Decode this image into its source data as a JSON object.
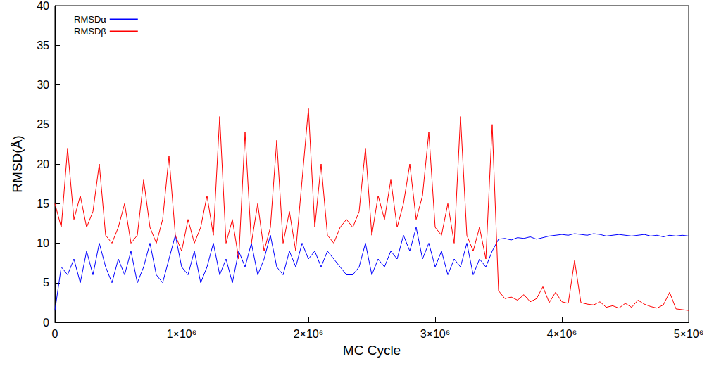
{
  "chart_data": {
    "type": "line",
    "x_label": "MC Cycle",
    "y_label": "RMSD(Å)",
    "x": [
      0,
      50000,
      100000,
      150000,
      200000,
      250000,
      300000,
      350000,
      400000,
      450000,
      500000,
      550000,
      600000,
      650000,
      700000,
      750000,
      800000,
      850000,
      900000,
      950000,
      1000000,
      1050000,
      1100000,
      1150000,
      1200000,
      1250000,
      1300000,
      1350000,
      1400000,
      1450000,
      1500000,
      1550000,
      1600000,
      1650000,
      1700000,
      1750000,
      1800000,
      1850000,
      1900000,
      1950000,
      2000000,
      2050000,
      2100000,
      2150000,
      2200000,
      2250000,
      2300000,
      2350000,
      2400000,
      2450000,
      2500000,
      2550000,
      2600000,
      2650000,
      2700000,
      2750000,
      2800000,
      2850000,
      2900000,
      2950000,
      3000000,
      3050000,
      3100000,
      3150000,
      3200000,
      3250000,
      3300000,
      3350000,
      3400000,
      3450000,
      3500000,
      3550000,
      3600000,
      3650000,
      3700000,
      3750000,
      3800000,
      3850000,
      3900000,
      3950000,
      4000000,
      4050000,
      4100000,
      4150000,
      4200000,
      4250000,
      4300000,
      4350000,
      4400000,
      4450000,
      4500000,
      4550000,
      4600000,
      4650000,
      4700000,
      4750000,
      4800000,
      4850000,
      4900000,
      4950000,
      5000000
    ],
    "series": [
      {
        "name": "RMSDα",
        "color": "#0000ff",
        "values": [
          1.5,
          7,
          6,
          8,
          5,
          9,
          6,
          10,
          7,
          5,
          8,
          6,
          9,
          5,
          7,
          10,
          6,
          5,
          8,
          11,
          7,
          6,
          9,
          5,
          7,
          10,
          6,
          8,
          5,
          9,
          7,
          10,
          6,
          8,
          11,
          7,
          6,
          9,
          7,
          10,
          8,
          9,
          7,
          9,
          8,
          7,
          6,
          6,
          7,
          10,
          6,
          8,
          7,
          9,
          8,
          11,
          9,
          12,
          8,
          10,
          7,
          9,
          6,
          8,
          7,
          10,
          6,
          8,
          7,
          9,
          10.5,
          10.6,
          10.4,
          10.7,
          10.6,
          10.8,
          10.5,
          10.7,
          10.9,
          11,
          11.1,
          11,
          11.2,
          11.1,
          11,
          11.2,
          11.1,
          10.9,
          11,
          11.1,
          11,
          10.9,
          11,
          11.1,
          10.9,
          11,
          10.8,
          11,
          10.9,
          11,
          10.9
        ]
      },
      {
        "name": "RMSDβ",
        "color": "#ff0000",
        "values": [
          15,
          12,
          22,
          13,
          16,
          12,
          14,
          20,
          11,
          10,
          12,
          15,
          10,
          11,
          18,
          12,
          10,
          13,
          21,
          11,
          9,
          13,
          10,
          12,
          16,
          11,
          26,
          10,
          13,
          8,
          24,
          10,
          15,
          9,
          12,
          23,
          10,
          14,
          9,
          18,
          27,
          12,
          20,
          11,
          10,
          12,
          13,
          12,
          14,
          22,
          11,
          16,
          13,
          18,
          12,
          15,
          20,
          13,
          16,
          24,
          12,
          11,
          15,
          10,
          26,
          11,
          9,
          12,
          8,
          25,
          4,
          3,
          3.2,
          2.8,
          3.5,
          2.6,
          3,
          4.5,
          2.5,
          3.8,
          2.6,
          2.4,
          7.8,
          2.5,
          2.3,
          2.2,
          2.6,
          1.9,
          2.1,
          1.8,
          2.4,
          1.9,
          2.8,
          2.3,
          2,
          1.8,
          2.2,
          3.8,
          1.7,
          1.6,
          1.5
        ]
      }
    ],
    "xlim": [
      0,
      5000000
    ],
    "xticks": [
      0,
      {
        "value": 1000000,
        "label": "1×10⁶"
      },
      {
        "value": 2000000,
        "label": "2×10⁶"
      },
      {
        "value": 3000000,
        "label": "3×10⁶"
      },
      {
        "value": 4000000,
        "label": "4×10⁶"
      },
      {
        "value": 5000000,
        "label": "5×10⁶"
      }
    ],
    "ylim": [
      0,
      40
    ],
    "yticks": [
      0,
      5,
      10,
      15,
      20,
      25,
      30,
      35,
      40
    ],
    "grid": false,
    "legend": "top-left"
  }
}
